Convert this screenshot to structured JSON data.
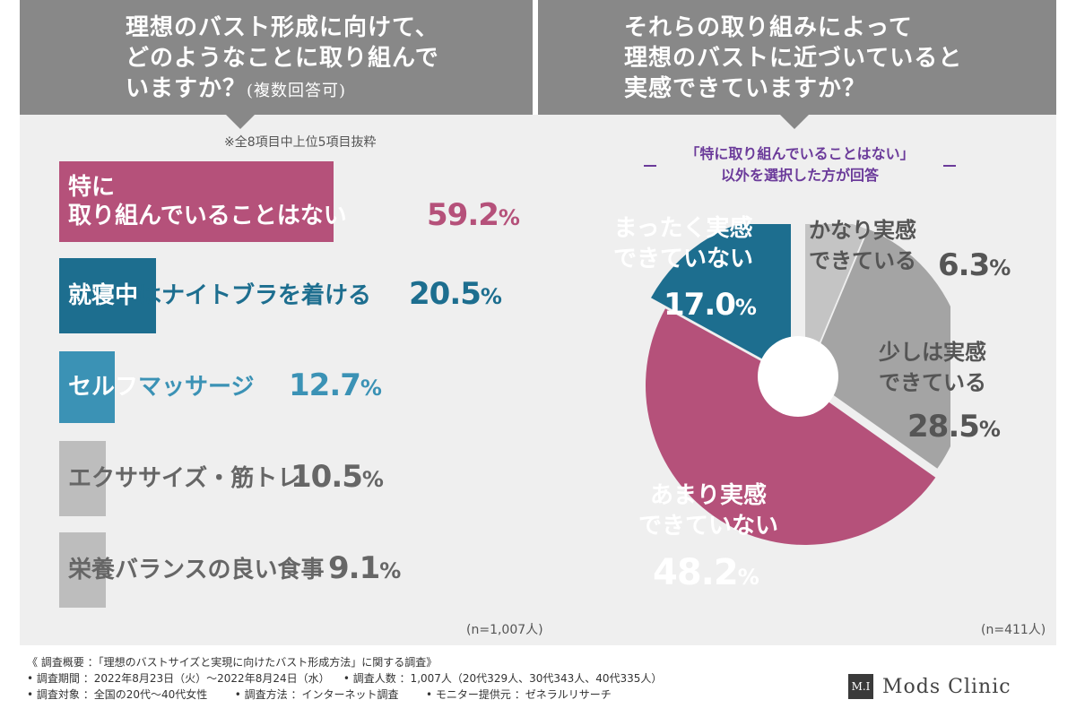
{
  "headers": {
    "left": {
      "line1": "理想のバスト形成に向けて、",
      "line2": "どのようなことに取り組んで",
      "line3": "いますか？",
      "line3_small": "(複数回答可)"
    },
    "right": {
      "line1": "それらの取り組みによって",
      "line2": "理想のバストに近づいていると",
      "line3": "実感できていますか？"
    }
  },
  "left_note": "※全8項目中上位5項目抜粋",
  "right_note": {
    "line1": "「特に取り組んでいることはない」",
    "line2": "以外を選択した方が回答"
  },
  "colors": {
    "pink": "#b5517a",
    "teal_dark": "#1d6e8f",
    "teal_light": "#3b92b5",
    "gray_bar": "#bdbdbd",
    "gray_pie": "#a4a4a4",
    "gray_pie_light": "#c4c4c4"
  },
  "chart_data": [
    {
      "type": "bar",
      "title": "理想のバスト形成に向けて、どのようなことに取り組んでいますか？(複数回答可)",
      "orientation": "horizontal",
      "categories": [
        "特に取り組んでいることはない",
        "就寝中はナイトブラを着ける",
        "セルフマッサージ",
        "エクササイズ・筋トレ",
        "栄養バランスの良い食事"
      ],
      "category_display": [
        {
          "on_bar": "特に\n取り組んでいることはない",
          "off_bar": ""
        },
        {
          "on_bar": "就寝中",
          "off_bar": "はナイトブラを着ける"
        },
        {
          "on_bar": "セルフ",
          "off_bar": "マッサージ"
        },
        {
          "on_bar": "",
          "off_bar": "エクササイズ・筋トレ"
        },
        {
          "on_bar": "",
          "off_bar": "栄養バランスの良い食事"
        }
      ],
      "values": [
        59.2,
        20.5,
        12.7,
        10.5,
        9.1
      ],
      "value_labels": {
        "int": [
          "59.2",
          "20.5",
          "12.7",
          "10.5",
          "9.1"
        ],
        "unit": "%"
      },
      "bar_colors": [
        "#b5517a",
        "#1d6e8f",
        "#3b92b5",
        "#bdbdbd",
        "#bdbdbd"
      ],
      "value_colors": [
        "#b5517a",
        "#1d6e8f",
        "#3b92b5",
        "#666666",
        "#666666"
      ],
      "n_label": "(n=1,007人)"
    },
    {
      "type": "pie",
      "title": "それらの取り組みによって理想のバストに近づいていると実感できていますか？",
      "donut": true,
      "slices": [
        {
          "label": "かなり実感\nできている",
          "value": 6.3,
          "value_text": "6.3",
          "color": "#c4c4c4",
          "text_color": "#555555"
        },
        {
          "label": "少しは実感\nできている",
          "value": 28.5,
          "value_text": "28.5",
          "color": "#a4a4a4",
          "text_color": "#555555"
        },
        {
          "label": "あまり実感\nできていない",
          "value": 48.2,
          "value_text": "48.2",
          "color": "#b5517a",
          "text_color": "#ffffff"
        },
        {
          "label": "まったく実感\nできていない",
          "value": 17.0,
          "value_text": "17.0",
          "color": "#1d6e8f",
          "text_color": "#ffffff"
        }
      ],
      "unit": "%",
      "n_label": "(n=411人)"
    }
  ],
  "footer": {
    "line1": "《 調査概要 ：「理想のバストサイズと実現に向けたバスト形成方法」に関する調査》",
    "line2": "• 調査期間 ：2022年8月23日（火）〜2022年8月24日（水）    • 調査人数 ：1,007人（20代329人、30代343人、40代335人）",
    "line3": "• 調査対象 ：全国の20代〜40代女性        • 調査方法 ：インターネット調査        • モニター提供元 ：ゼネラルリサーチ"
  },
  "brand": {
    "mark": "M.I",
    "name": "Mods Clinic"
  }
}
